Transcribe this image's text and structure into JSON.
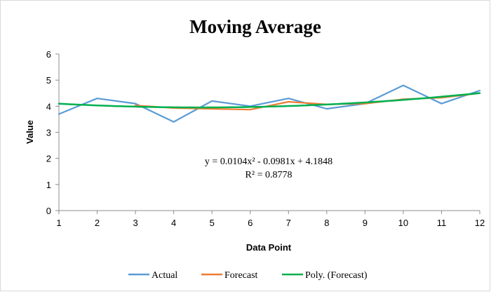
{
  "chart_data": {
    "type": "line",
    "title": "Moving Average",
    "xlabel": "Data Point",
    "ylabel": "Value",
    "x": [
      1,
      2,
      3,
      4,
      5,
      6,
      7,
      8,
      9,
      10,
      11,
      12
    ],
    "xlim": [
      1,
      12
    ],
    "ylim": [
      0,
      6
    ],
    "yticks": [
      0,
      1,
      2,
      3,
      4,
      5,
      6
    ],
    "grid": false,
    "legend_position": "bottom",
    "series": [
      {
        "name": "Actual",
        "color": "#5b9bd5",
        "values": [
          3.7,
          4.3,
          4.1,
          3.4,
          4.2,
          4.0,
          4.3,
          3.9,
          4.1,
          4.8,
          4.1,
          4.6
        ]
      },
      {
        "name": "Forecast",
        "color": "#ed7d31",
        "values": [
          null,
          null,
          4.03,
          3.93,
          3.9,
          3.87,
          4.17,
          4.07,
          4.1,
          4.27,
          4.33,
          4.5
        ]
      },
      {
        "name": "Poly. (Forecast)",
        "color": "#00b050",
        "trendline": {
          "a": 0.0104,
          "b": -0.0981,
          "c": 4.1848
        }
      }
    ],
    "annotations": {
      "equation": "y = 0.0104x² - 0.0981x + 4.1848",
      "r_squared": "R² = 0.8778"
    }
  }
}
